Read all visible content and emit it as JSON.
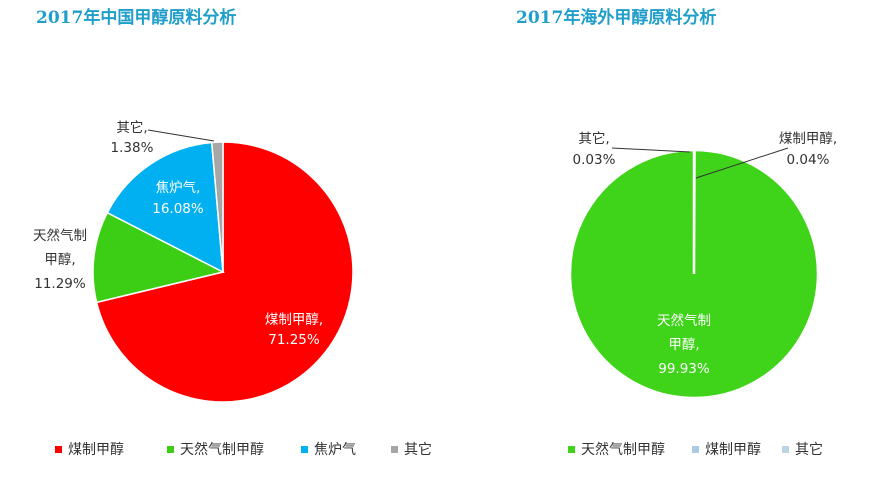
{
  "chart_data": [
    {
      "type": "pie",
      "title": "2017年中国甲醇原料分析",
      "slices": [
        {
          "name": "煤制甲醇",
          "label_lines": [
            "煤制甲醇,"
          ],
          "pct_text": "71.25%",
          "value": 71.25,
          "color": "#fe0000"
        },
        {
          "name": "天然气制甲醇",
          "label_lines": [
            "天然气制",
            "甲醇,"
          ],
          "pct_text": "11.29%",
          "value": 11.29,
          "color": "#3cce15"
        },
        {
          "name": "焦炉气",
          "label_lines": [
            "焦炉气,"
          ],
          "pct_text": "16.08%",
          "value": 16.08,
          "color": "#00b0f0"
        },
        {
          "name": "其它",
          "label_lines": [
            "其它,"
          ],
          "pct_text": "1.38%",
          "value": 1.38,
          "color": "#a6a6a6"
        }
      ],
      "legend_placement": "bottom"
    },
    {
      "type": "pie",
      "title": "2017年海外甲醇原料分析",
      "slices": [
        {
          "name": "天然气制甲醇",
          "label_lines": [
            "天然气制",
            "甲醇,"
          ],
          "pct_text": "99.93%",
          "value": 99.93,
          "color": "#3fd41a"
        },
        {
          "name": "煤制甲醇",
          "label_lines": [
            "煤制甲醇,"
          ],
          "pct_text": "0.04%",
          "value": 0.04,
          "color": "#a9cce3"
        },
        {
          "name": "其它",
          "label_lines": [
            "其它,"
          ],
          "pct_text": "0.03%",
          "value": 0.03,
          "color": "#bcd3e3"
        }
      ],
      "legend_placement": "bottom"
    }
  ]
}
